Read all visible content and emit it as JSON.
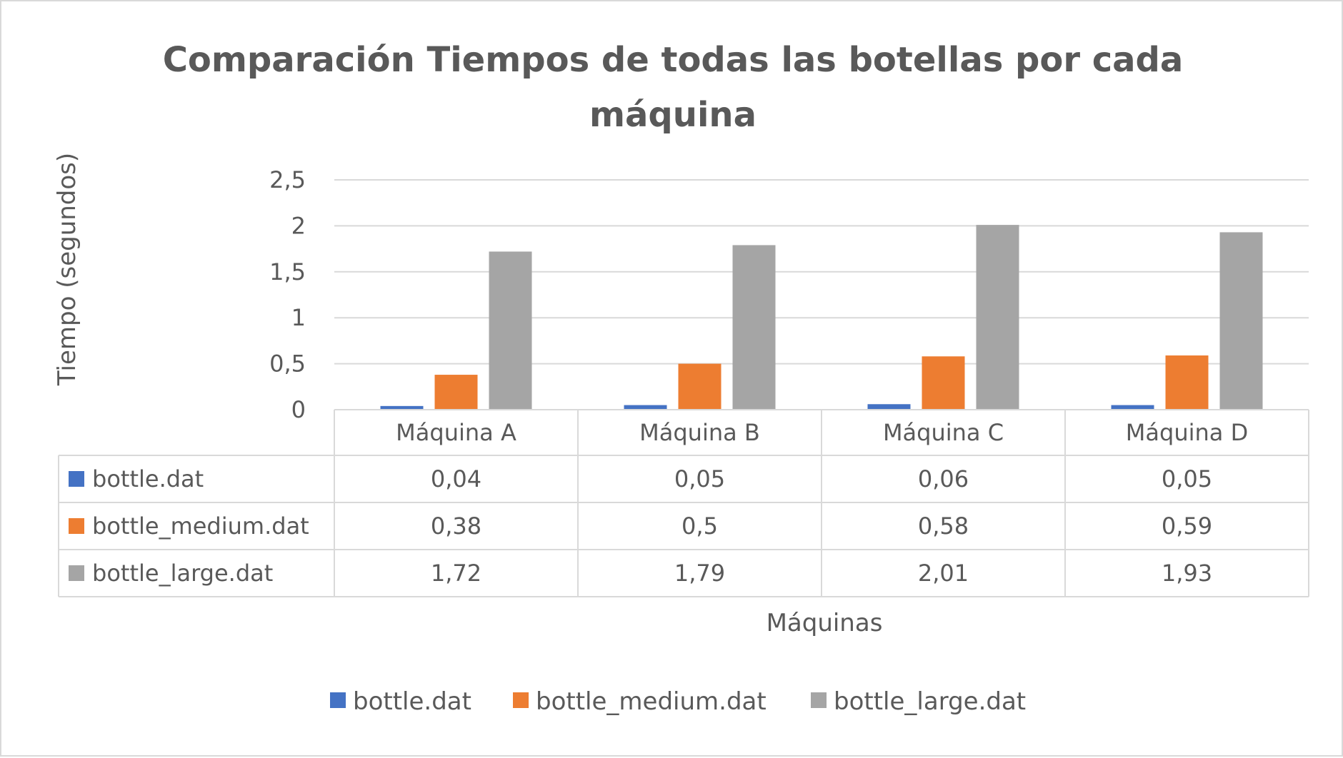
{
  "chart_data": {
    "type": "bar",
    "title_line1": "Comparación Tiempos de todas las botellas por cada",
    "title_line2": "máquina",
    "xlabel": "Máquinas",
    "ylabel": "Tiempo (segundos)",
    "ylim": [
      0,
      2.5
    ],
    "yticks": [
      "0",
      "0,5",
      "1",
      "1,5",
      "2",
      "2,5"
    ],
    "grid": true,
    "legend_position": "bottom",
    "data_table": true,
    "categories": [
      "Máquina A",
      "Máquina B",
      "Máquina C",
      "Máquina D"
    ],
    "series": [
      {
        "name": "bottle.dat",
        "color": "#4472c4",
        "values": [
          0.04,
          0.05,
          0.06,
          0.05
        ],
        "labels": [
          "0,04",
          "0,05",
          "0,06",
          "0,05"
        ]
      },
      {
        "name": "bottle_medium.dat",
        "color": "#ed7d31",
        "values": [
          0.38,
          0.5,
          0.58,
          0.59
        ],
        "labels": [
          "0,38",
          "0,5",
          "0,58",
          "0,59"
        ]
      },
      {
        "name": "bottle_large.dat",
        "color": "#a5a5a5",
        "values": [
          1.72,
          1.79,
          2.01,
          1.93
        ],
        "labels": [
          "1,72",
          "1,79",
          "2,01",
          "1,93"
        ]
      }
    ]
  }
}
